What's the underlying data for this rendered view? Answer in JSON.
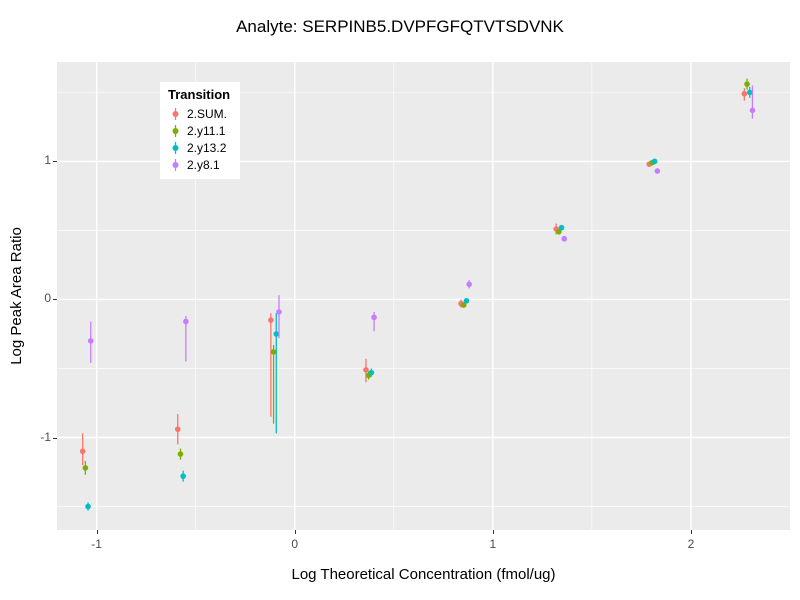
{
  "chart_data": {
    "type": "scatter",
    "title": "Analyte: SERPINB5.DVPFGFQTVTSDVNK",
    "xlabel": "Log Theoretical Concentration (fmol/ug)",
    "ylabel": "Log Peak Area Ratio",
    "legend_title": "Transition",
    "panel_bg": "#EBEBEB",
    "grid_color": "#FFFFFF",
    "tick_label_color": "#4D4D4D",
    "x_range": [
      -1.2,
      2.5
    ],
    "y_range": [
      -1.67,
      1.72
    ],
    "x_ticks": [
      -1,
      0,
      1,
      2
    ],
    "y_ticks": [
      -1,
      0,
      1
    ],
    "x_minor": [
      -0.5,
      0.5,
      1.5
    ],
    "y_minor": [
      -1.5,
      -0.5,
      0.5,
      1.5
    ],
    "series": [
      {
        "name": "2.SUM.",
        "color": "#F8766D",
        "points": [
          {
            "x": -1.05,
            "y": -1.1,
            "lo": -1.2,
            "hi": -0.97
          },
          {
            "x": -0.57,
            "y": -0.94,
            "lo": -1.05,
            "hi": -0.83
          },
          {
            "x": -0.1,
            "y": -0.15,
            "lo": -0.85,
            "hi": -0.1
          },
          {
            "x": 0.38,
            "y": -0.51,
            "lo": -0.6,
            "hi": -0.43
          },
          {
            "x": 0.86,
            "y": -0.03,
            "lo": -0.06,
            "hi": 0.0
          },
          {
            "x": 1.34,
            "y": 0.51,
            "lo": 0.47,
            "hi": 0.55
          },
          {
            "x": 1.81,
            "y": 0.98,
            "lo": 0.96,
            "hi": 1.0
          },
          {
            "x": 2.29,
            "y": 1.49,
            "lo": 1.44,
            "hi": 1.53
          }
        ]
      },
      {
        "name": "2.y11.1",
        "color": "#7CAE00",
        "points": [
          {
            "x": -1.05,
            "y": -1.22,
            "lo": -1.27,
            "hi": -1.17
          },
          {
            "x": -0.57,
            "y": -1.12,
            "lo": -1.16,
            "hi": -1.08
          },
          {
            "x": -0.1,
            "y": -0.38,
            "lo": -0.9,
            "hi": -0.33
          },
          {
            "x": 0.38,
            "y": -0.55,
            "lo": -0.58,
            "hi": -0.52
          },
          {
            "x": 0.86,
            "y": -0.04,
            "lo": -0.06,
            "hi": -0.02
          },
          {
            "x": 1.34,
            "y": 0.49,
            "lo": 0.47,
            "hi": 0.51
          },
          {
            "x": 1.81,
            "y": 0.99,
            "lo": 0.97,
            "hi": 1.01
          },
          {
            "x": 2.29,
            "y": 1.56,
            "lo": 1.52,
            "hi": 1.6
          }
        ]
      },
      {
        "name": "2.y13.2",
        "color": "#00BFC4",
        "points": [
          {
            "x": -1.05,
            "y": -1.5,
            "lo": -1.53,
            "hi": -1.47
          },
          {
            "x": -0.57,
            "y": -1.28,
            "lo": -1.32,
            "hi": -1.24
          },
          {
            "x": -0.1,
            "y": -0.25,
            "lo": -0.97,
            "hi": -0.1
          },
          {
            "x": 0.38,
            "y": -0.53,
            "lo": -0.56,
            "hi": -0.5
          },
          {
            "x": 0.86,
            "y": -0.01,
            "lo": -0.03,
            "hi": 0.01
          },
          {
            "x": 1.34,
            "y": 0.52,
            "lo": 0.5,
            "hi": 0.54
          },
          {
            "x": 1.81,
            "y": 1.0,
            "lo": 0.98,
            "hi": 1.02
          },
          {
            "x": 2.29,
            "y": 1.5,
            "lo": 1.46,
            "hi": 1.54
          }
        ]
      },
      {
        "name": "2.y8.1",
        "color": "#C77CFF",
        "points": [
          {
            "x": -1.05,
            "y": -0.3,
            "lo": -0.46,
            "hi": -0.16
          },
          {
            "x": -0.57,
            "y": -0.16,
            "lo": -0.45,
            "hi": -0.12
          },
          {
            "x": -0.1,
            "y": -0.09,
            "lo": -0.28,
            "hi": 0.03
          },
          {
            "x": 0.38,
            "y": -0.13,
            "lo": -0.23,
            "hi": -0.09
          },
          {
            "x": 0.86,
            "y": 0.11,
            "lo": 0.08,
            "hi": 0.14
          },
          {
            "x": 1.34,
            "y": 0.44,
            "lo": 0.42,
            "hi": 0.46
          },
          {
            "x": 1.81,
            "y": 0.93,
            "lo": 0.91,
            "hi": 0.95
          },
          {
            "x": 2.29,
            "y": 1.37,
            "lo": 1.31,
            "hi": 1.55
          }
        ]
      }
    ]
  }
}
